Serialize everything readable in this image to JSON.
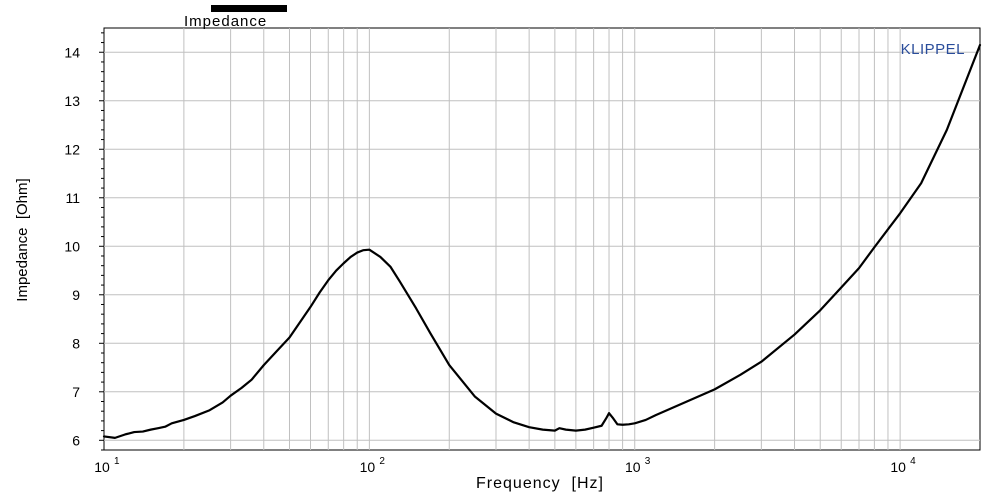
{
  "chart_data": {
    "type": "line",
    "xscale": "log",
    "xlim": [
      10,
      20000
    ],
    "ylim": [
      5.8,
      14.5
    ],
    "grid": true,
    "watermark": "KLIPPEL",
    "xlabel": "Frequency  [Hz]",
    "ylabel": "Impedance  [Ohm]",
    "xtick_labels": [
      {
        "base": "10",
        "exp": "1",
        "value": 10
      },
      {
        "base": "10",
        "exp": "2",
        "value": 100
      },
      {
        "base": "10",
        "exp": "3",
        "value": 1000
      },
      {
        "base": "10",
        "exp": "4",
        "value": 10000
      }
    ],
    "yticks": [
      6,
      7,
      8,
      9,
      10,
      11,
      12,
      13,
      14
    ],
    "legend": {
      "position": "top-left",
      "entries": [
        "Impedance"
      ]
    },
    "colors": {
      "line": "#000000",
      "grid": "#c0c0c0",
      "watermark": "#2a4d9b",
      "legend_swatch": "#000000"
    },
    "series": [
      {
        "name": "Impedance",
        "x": [
          10,
          11,
          12,
          13,
          14,
          15,
          16,
          17,
          18,
          20,
          22,
          25,
          28,
          30,
          33,
          36,
          40,
          45,
          50,
          55,
          60,
          65,
          70,
          75,
          80,
          85,
          90,
          95,
          100,
          110,
          120,
          130,
          150,
          170,
          200,
          250,
          300,
          350,
          400,
          450,
          500,
          520,
          550,
          600,
          650,
          700,
          750,
          780,
          800,
          830,
          860,
          900,
          950,
          1000,
          1100,
          1200,
          1500,
          2000,
          2500,
          3000,
          4000,
          5000,
          6000,
          7000,
          8000,
          9000,
          10000,
          12000,
          15000,
          20000
        ],
        "y": [
          6.08,
          6.05,
          6.12,
          6.17,
          6.18,
          6.22,
          6.25,
          6.28,
          6.35,
          6.42,
          6.5,
          6.62,
          6.78,
          6.92,
          7.08,
          7.25,
          7.55,
          7.85,
          8.12,
          8.45,
          8.75,
          9.05,
          9.3,
          9.5,
          9.65,
          9.78,
          9.87,
          9.92,
          9.93,
          9.78,
          9.58,
          9.28,
          8.72,
          8.2,
          7.55,
          6.9,
          6.55,
          6.37,
          6.27,
          6.22,
          6.2,
          6.25,
          6.22,
          6.2,
          6.22,
          6.26,
          6.3,
          6.45,
          6.56,
          6.45,
          6.33,
          6.32,
          6.33,
          6.35,
          6.42,
          6.52,
          6.75,
          7.05,
          7.35,
          7.62,
          8.18,
          8.68,
          9.15,
          9.55,
          9.98,
          10.35,
          10.68,
          11.3,
          12.4,
          14.15
        ]
      }
    ]
  }
}
